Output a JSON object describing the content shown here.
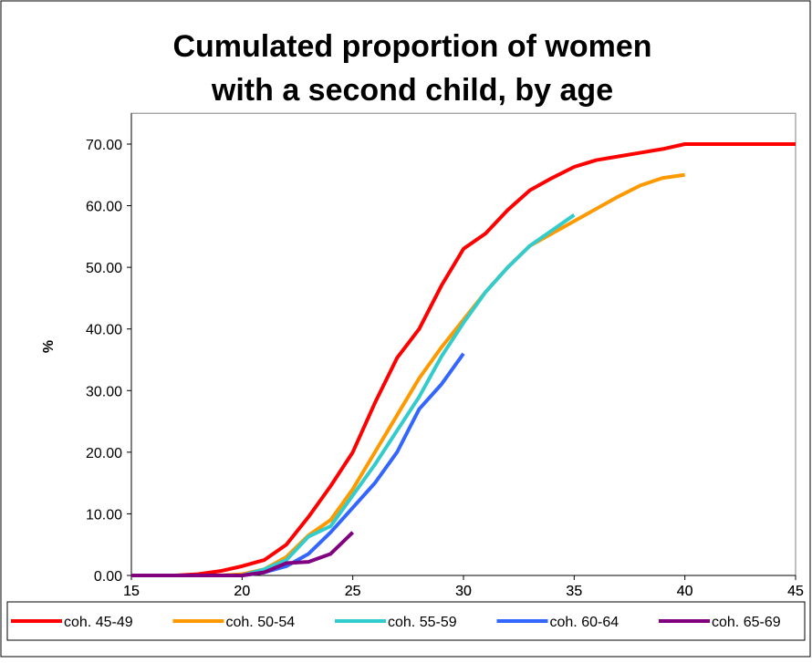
{
  "chart_data": {
    "type": "line",
    "title": [
      "Cumulated proportion of women",
      "with a second child, by age"
    ],
    "y_label": "%",
    "x": [
      15,
      16,
      17,
      18,
      19,
      20,
      21,
      22,
      23,
      24,
      25,
      26,
      27,
      28,
      29,
      30,
      31,
      32,
      33,
      34,
      35,
      36,
      37,
      38,
      39,
      40,
      41,
      42,
      43,
      44,
      45
    ],
    "series": [
      {
        "name": "coh. 45-49",
        "color": "#ff0000",
        "values": [
          0,
          0,
          0,
          0.2,
          0.7,
          1.5,
          2.5,
          5,
          9.5,
          14.5,
          20,
          28,
          35.3,
          40,
          47,
          53,
          55.5,
          59.3,
          62.5,
          64.5,
          66.3,
          67.4,
          68,
          68.6,
          69.2,
          70,
          70,
          70,
          70,
          70,
          70
        ]
      },
      {
        "name": "coh. 50-54",
        "color": "#ff9900",
        "values": [
          0,
          0,
          0,
          0,
          0,
          0.2,
          1,
          3,
          6.5,
          9,
          14,
          20,
          26,
          32,
          37,
          41.5,
          46,
          50,
          53.5,
          55.5,
          57.5,
          59.5,
          61.5,
          63.3,
          64.5,
          65,
          null,
          null,
          null,
          null,
          null
        ]
      },
      {
        "name": "coh. 55-59",
        "color": "#33cccc",
        "values": [
          0,
          0,
          0,
          0,
          0,
          0,
          1,
          2.5,
          6.3,
          8,
          13,
          18,
          23.5,
          29,
          35.5,
          41,
          46,
          50,
          53.5,
          56,
          58.5,
          null,
          null,
          null,
          null,
          null,
          null,
          null,
          null,
          null,
          null
        ]
      },
      {
        "name": "coh. 60-64",
        "color": "#3366ff",
        "values": [
          0,
          0,
          0,
          0,
          0,
          0,
          0.5,
          1.5,
          3.5,
          7,
          11,
          15,
          20,
          27,
          31,
          36,
          null,
          null,
          null,
          null,
          null,
          null,
          null,
          null,
          null,
          null,
          null,
          null,
          null,
          null,
          null
        ]
      },
      {
        "name": "coh. 65-69",
        "color": "#800080",
        "values": [
          0,
          0,
          0,
          0,
          0,
          0,
          0.5,
          2,
          2.2,
          3.5,
          7,
          null,
          null,
          null,
          null,
          null,
          null,
          null,
          null,
          null,
          null,
          null,
          null,
          null,
          null,
          null,
          null,
          null,
          null,
          null,
          null
        ]
      }
    ],
    "xlim": [
      15,
      45
    ],
    "xticks": [
      15,
      20,
      25,
      30,
      35,
      40,
      45
    ],
    "ylim": [
      0,
      75
    ],
    "yticks": [
      {
        "value": 0,
        "label": "0.00"
      },
      {
        "value": 10,
        "label": "10.00"
      },
      {
        "value": 20,
        "label": "20.00"
      },
      {
        "value": 30,
        "label": "30.00"
      },
      {
        "value": 40,
        "label": "40.00"
      },
      {
        "value": 50,
        "label": "50.00"
      },
      {
        "value": 60,
        "label": "60.00"
      },
      {
        "value": 70,
        "label": "70.00"
      }
    ],
    "grid": false,
    "legend": "bottom"
  }
}
